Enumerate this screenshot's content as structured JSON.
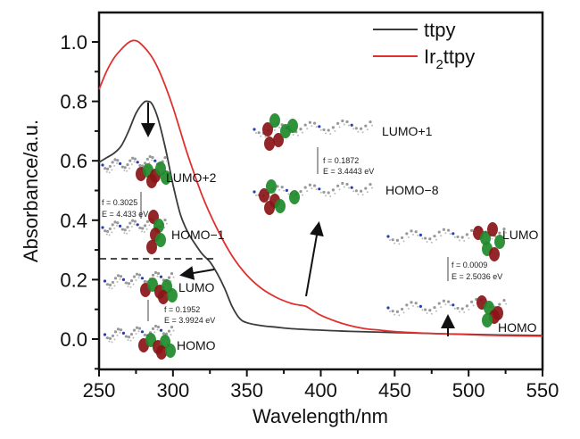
{
  "chart_data": {
    "type": "line",
    "title": "",
    "xlabel": "Wavelength/nm",
    "ylabel": "Absorbance/a.u.",
    "xlim": [
      250,
      550
    ],
    "ylim": [
      -0.1,
      1.1
    ],
    "xticks": [
      250,
      300,
      350,
      400,
      450,
      500,
      550
    ],
    "yticks": [
      0.0,
      0.2,
      0.4,
      0.6,
      0.8,
      1.0
    ],
    "xtick_labels": [
      "250",
      "300",
      "350",
      "400",
      "450",
      "500",
      "550"
    ],
    "ytick_labels": [
      "0.0",
      "0.2",
      "0.4",
      "0.6",
      "0.8",
      "1.0"
    ],
    "grid": false,
    "legend_position": "top-right",
    "series": [
      {
        "name": "ttpy",
        "legend_main": "ttpy",
        "legend_sub": "",
        "legend_tail": "",
        "color": "#3a3a3a",
        "x": [
          250,
          255,
          260,
          265,
          270,
          275,
          280,
          283,
          286,
          290,
          295,
          300,
          305,
          310,
          315,
          320,
          325,
          330,
          335,
          340,
          345,
          350,
          360,
          370,
          380,
          400,
          420,
          450,
          480,
          500,
          520,
          550
        ],
        "y": [
          0.595,
          0.61,
          0.625,
          0.65,
          0.7,
          0.76,
          0.795,
          0.8,
          0.79,
          0.74,
          0.64,
          0.52,
          0.42,
          0.36,
          0.32,
          0.285,
          0.26,
          0.22,
          0.17,
          0.11,
          0.07,
          0.055,
          0.045,
          0.04,
          0.035,
          0.03,
          0.026,
          0.022,
          0.018,
          0.016,
          0.014,
          0.012
        ]
      },
      {
        "name": "Ir2ttpy",
        "legend_main": "Ir",
        "legend_sub": "2",
        "legend_tail": "ttpy",
        "color": "#e0302e",
        "x": [
          250,
          255,
          260,
          265,
          270,
          274,
          278,
          285,
          290,
          295,
          300,
          305,
          310,
          320,
          330,
          340,
          350,
          360,
          370,
          380,
          385,
          390,
          395,
          400,
          410,
          420,
          430,
          440,
          450,
          470,
          500,
          520,
          550
        ],
        "y": [
          0.84,
          0.9,
          0.945,
          0.975,
          0.998,
          1.005,
          0.995,
          0.955,
          0.91,
          0.85,
          0.78,
          0.7,
          0.62,
          0.48,
          0.37,
          0.28,
          0.215,
          0.17,
          0.14,
          0.12,
          0.115,
          0.11,
          0.095,
          0.08,
          0.06,
          0.045,
          0.035,
          0.03,
          0.025,
          0.02,
          0.015,
          0.012,
          0.01
        ]
      }
    ],
    "annotations": [
      {
        "label": "LUMO+2",
        "group": "ttpy-high"
      },
      {
        "label": "HOMO−1",
        "group": "ttpy-high"
      },
      {
        "label": "f = 0.3025",
        "group": "ttpy-high"
      },
      {
        "label": "E = 4.433 eV",
        "group": "ttpy-high"
      },
      {
        "label": "LUMO",
        "group": "ttpy-low"
      },
      {
        "label": "HOMO",
        "group": "ttpy-low"
      },
      {
        "label": "f = 0.1952",
        "group": "ttpy-low"
      },
      {
        "label": "E = 3.9924 eV",
        "group": "ttpy-low"
      },
      {
        "label": "LUMO+1",
        "group": "ir-mid"
      },
      {
        "label": "HOMO−8",
        "group": "ir-mid"
      },
      {
        "label": "f = 0.1872",
        "group": "ir-mid"
      },
      {
        "label": "E = 3.4443 eV",
        "group": "ir-mid"
      },
      {
        "label": "LUMO",
        "group": "ir-low"
      },
      {
        "label": "HOMO",
        "group": "ir-low"
      },
      {
        "label": "f = 0.0009",
        "group": "ir-low"
      },
      {
        "label": "E = 2.5036 eV",
        "group": "ir-low"
      }
    ]
  },
  "labels": {
    "a_lumo2": "LUMO+2",
    "a_homo1": "HOMO−1",
    "a_f1": "f = 0.3025",
    "a_e1": "E = 4.433 eV",
    "b_lumo": "LUMO",
    "b_homo": "HOMO",
    "b_f": "f = 0.1952",
    "b_e": "E = 3.9924 eV",
    "c_lumo1": "LUMO+1",
    "c_homo8": "HOMO−8",
    "c_f": "f = 0.1872",
    "c_e": "E = 3.4443 eV",
    "d_lumo": "LUMO",
    "d_homo": "HOMO",
    "d_f": "f = 0.0009",
    "d_e": "E = 2.5036 eV"
  }
}
